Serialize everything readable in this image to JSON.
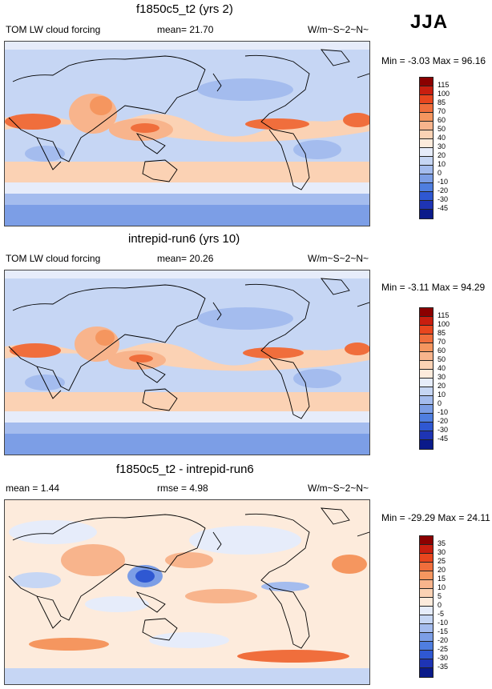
{
  "season": "JJA",
  "panels": [
    {
      "title": "f1850c5_t2 (yrs 2)",
      "left_label": "TOM LW cloud forcing",
      "center_label": "mean=  21.70",
      "units": "W/m~S~2~N~",
      "minmax": "Min =  -3.03 Max =  96.16",
      "kind": "field"
    },
    {
      "title": "intrepid-run6 (yrs 10)",
      "left_label": "TOM LW cloud forcing",
      "center_label": "mean=  20.26",
      "units": "W/m~S~2~N~",
      "minmax": "Min =  -3.11 Max =  94.29",
      "kind": "field"
    },
    {
      "title": "f1850c5_t2 - intrepid-run6",
      "left_label": "mean =   1.44",
      "center_label": "rmse =   4.98",
      "units": "W/m~S~2~N~",
      "minmax": "Min = -29.29 Max =  24.11",
      "kind": "diff"
    }
  ],
  "colorbars": {
    "field": {
      "labels": [
        "115",
        "100",
        "85",
        "70",
        "60",
        "50",
        "40",
        "30",
        "20",
        "10",
        "0",
        "-10",
        "-20",
        "-30",
        "-45"
      ],
      "colors": [
        "#8b0000",
        "#c81e0f",
        "#e8461e",
        "#f06e3c",
        "#f5965f",
        "#f8b48c",
        "#fbd2b4",
        "#fdebdc",
        "#e6ecfa",
        "#c6d6f4",
        "#a4bcee",
        "#7c9ee6",
        "#4f7ee0",
        "#2f58d2",
        "#1e34b4",
        "#0a1a8a"
      ]
    },
    "diff": {
      "labels": [
        "35",
        "30",
        "25",
        "20",
        "15",
        "10",
        "5",
        "0",
        "-5",
        "-10",
        "-15",
        "-20",
        "-25",
        "-30",
        "-35"
      ],
      "colors": [
        "#8b0000",
        "#c81e0f",
        "#e8461e",
        "#f06e3c",
        "#f5965f",
        "#f8b48c",
        "#fbd2b4",
        "#fdebdc",
        "#e6ecfa",
        "#c6d6f4",
        "#a4bcee",
        "#7c9ee6",
        "#4f7ee0",
        "#2f58d2",
        "#1e34b4",
        "#0a1a8a"
      ]
    }
  }
}
